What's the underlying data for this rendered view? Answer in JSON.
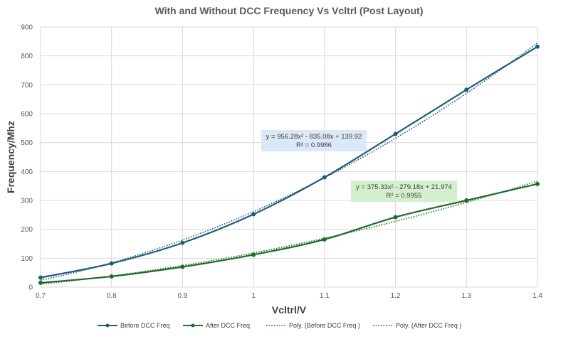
{
  "chart_data": {
    "type": "line",
    "title": "With and Without DCC Frequency Vs Vcltrl (Post Layout)",
    "xlabel": "Vcltrl/V",
    "ylabel": "Frequency/Mhz",
    "x": [
      0.7,
      0.8,
      0.9,
      1.0,
      1.1,
      1.2,
      1.3,
      1.4
    ],
    "x_tick_labels": [
      "0.7",
      "0.8",
      "0.9",
      "1",
      "1.1",
      "1.2",
      "1.3",
      "1.4"
    ],
    "xlim": [
      0.7,
      1.4
    ],
    "ylim": [
      0,
      900
    ],
    "y_ticks": [
      0,
      100,
      200,
      300,
      400,
      500,
      600,
      700,
      800,
      900
    ],
    "grid": true,
    "legend_position": "bottom",
    "series": [
      {
        "name": "Before DCC Freq",
        "color": "#1f5c7a",
        "values": [
          33,
          82,
          153,
          252,
          380,
          530,
          683,
          832
        ]
      },
      {
        "name": "After DCC Freq",
        "color": "#1e6b2a",
        "values": [
          15,
          37,
          70,
          112,
          165,
          242,
          300,
          357
        ]
      }
    ],
    "trendlines": [
      {
        "name": "Poly. (Before DCC Freq )",
        "color": "#1f5c7a",
        "coefficients": [
          956.28,
          -835.08,
          139.92
        ],
        "equation": "y = 956.28x² - 835.08x + 139.92",
        "r_squared": "R² = 0.9986",
        "label_bg": "#dae8f7"
      },
      {
        "name": "Poly. (After DCC Freq )",
        "color": "#1e6b2a",
        "coefficients": [
          375.33,
          -279.18,
          21.974
        ],
        "equation": "y = 375.33x² - 279.18x + 21.974",
        "r_squared": "R² = 0.9955",
        "label_bg": "#d4efcc"
      }
    ]
  }
}
